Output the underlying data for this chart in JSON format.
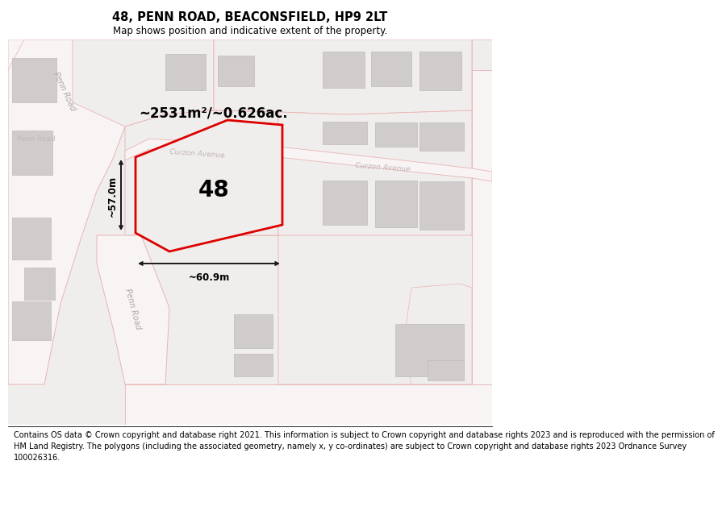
{
  "title": "48, PENN ROAD, BEACONSFIELD, HP9 2LT",
  "subtitle": "Map shows position and indicative extent of the property.",
  "footer": "Contains OS data © Crown copyright and database right 2021. This information is subject to Crown copyright and database rights 2023 and is reproduced with the permission of\nHM Land Registry. The polygons (including the associated geometry, namely x, y co-ordinates) are subject to Crown copyright and database rights 2023 Ordnance Survey\n100026316.",
  "area_label": "~2531m²/~0.626ac.",
  "property_number": "48",
  "width_label": "~60.9m",
  "height_label": "~57.0m",
  "map_bg": "#f0eeec",
  "road_color": "#e8b4b4",
  "road_white": "#f8f4f4",
  "building_fill": "#d0cccc",
  "building_edge": "#c0bcbc",
  "plot_fill": "#f0eeec",
  "plot_edge": "#dd0000",
  "plot_edge_width": 2.0,
  "title_fontsize": 10.5,
  "subtitle_fontsize": 8.5,
  "footer_fontsize": 7.0
}
